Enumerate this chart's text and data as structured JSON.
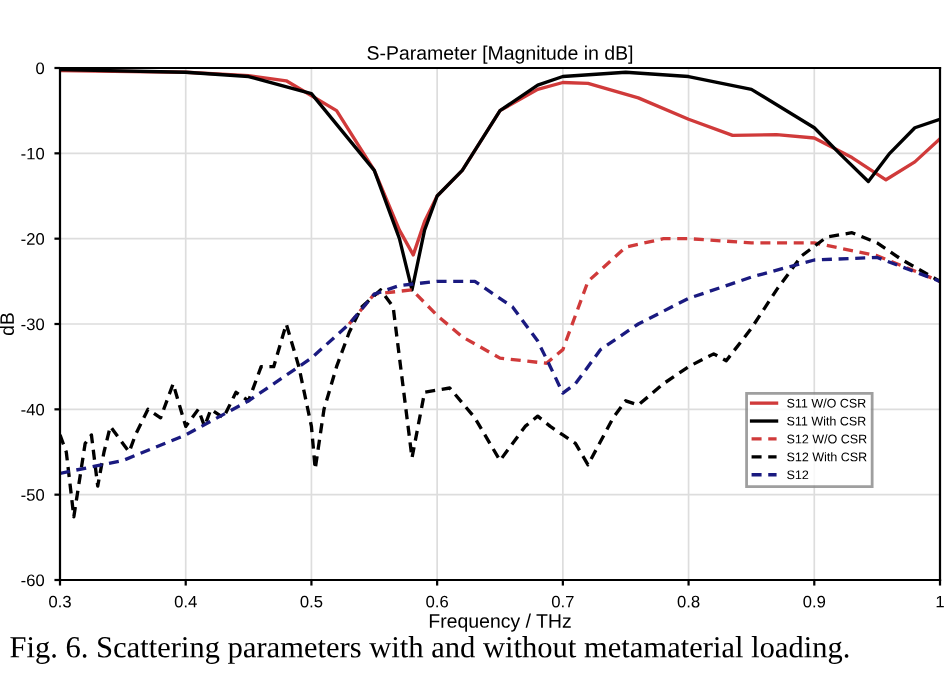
{
  "chart_data": {
    "type": "line",
    "title": "S-Parameter [Magnitude in dB]",
    "xlabel": "Frequency / THz",
    "ylabel": "dB",
    "xlim": [
      0.3,
      1.0
    ],
    "xticks": [
      0.3,
      0.4,
      0.5,
      0.6,
      0.7,
      0.8,
      0.9,
      1
    ],
    "ylim": [
      -60,
      0
    ],
    "yticks": [
      -60,
      -50,
      -40,
      -30,
      -20,
      -10,
      0
    ],
    "grid": true,
    "legend": "bottom right",
    "annotations": [
      "Fig. 6. Scattering parameters with and without metamaterial loading."
    ],
    "series": [
      {
        "name": "S11 W/O CSR",
        "color": "#d03a3a",
        "line_style": "solid",
        "x": [
          0.3,
          0.4,
          0.45,
          0.48,
          0.52,
          0.55,
          0.57,
          0.581,
          0.59,
          0.6,
          0.62,
          0.65,
          0.68,
          0.7,
          0.72,
          0.76,
          0.8,
          0.835,
          0.87,
          0.9,
          0.93,
          0.957,
          0.98,
          1.0
        ],
        "values": [
          -0.3,
          -0.5,
          -0.9,
          -1.5,
          -5,
          -12,
          -19,
          -21.9,
          -18,
          -15,
          -12,
          -5,
          -2.5,
          -1.7,
          -1.8,
          -3.5,
          -6,
          -7.9,
          -7.8,
          -8.2,
          -10.5,
          -13.1,
          -11,
          -8.3
        ]
      },
      {
        "name": "S11 With CSR",
        "color": "#000000",
        "line_style": "solid",
        "x": [
          0.3,
          0.4,
          0.45,
          0.47,
          0.5,
          0.55,
          0.57,
          0.58,
          0.59,
          0.6,
          0.62,
          0.65,
          0.68,
          0.7,
          0.75,
          0.8,
          0.85,
          0.9,
          0.92,
          0.943,
          0.96,
          0.98,
          1.0
        ],
        "values": [
          -0.2,
          -0.5,
          -1,
          -1.8,
          -3,
          -12,
          -20,
          -26,
          -19,
          -15,
          -12,
          -5,
          -2,
          -1,
          -0.5,
          -1,
          -2.5,
          -7,
          -10,
          -13.3,
          -10,
          -7,
          -6
        ]
      },
      {
        "name": "S12 W/O CSR",
        "color": "#d03a3a",
        "line_style": "dashed",
        "x": [
          0.53,
          0.55,
          0.58,
          0.6,
          0.62,
          0.65,
          0.687,
          0.7,
          0.72,
          0.75,
          0.78,
          0.8,
          0.85,
          0.9,
          0.95,
          1.0
        ],
        "values": [
          -30,
          -26.5,
          -26,
          -29,
          -31.5,
          -34,
          -34.6,
          -33,
          -25,
          -21,
          -20,
          -20,
          -20.5,
          -20.5,
          -22,
          -25
        ]
      },
      {
        "name": "S12 With CSR",
        "color": "#000000",
        "line_style": "dashed",
        "x": [
          0.3,
          0.305,
          0.311,
          0.32,
          0.325,
          0.33,
          0.335,
          0.34,
          0.35,
          0.355,
          0.36,
          0.37,
          0.38,
          0.39,
          0.4,
          0.41,
          0.415,
          0.42,
          0.43,
          0.44,
          0.45,
          0.46,
          0.47,
          0.48,
          0.49,
          0.5,
          0.503,
          0.51,
          0.52,
          0.53,
          0.54,
          0.555,
          0.565,
          0.58,
          0.59,
          0.61,
          0.63,
          0.65,
          0.67,
          0.68,
          0.69,
          0.7,
          0.71,
          0.72,
          0.74,
          0.75,
          0.76,
          0.78,
          0.8,
          0.82,
          0.83,
          0.85,
          0.87,
          0.89,
          0.91,
          0.93,
          0.95,
          0.97,
          1.0
        ],
        "values": [
          -43,
          -45,
          -52.6,
          -44,
          -43,
          -49,
          -45,
          -42,
          -44,
          -45,
          -43,
          -40,
          -41,
          -37,
          -42,
          -40,
          -42,
          -40,
          -41,
          -38,
          -39,
          -35,
          -35,
          -30,
          -35,
          -42,
          -47,
          -40,
          -35,
          -31,
          -28,
          -26,
          -28,
          -45.7,
          -38,
          -37.5,
          -41,
          -46,
          -42,
          -40.8,
          -42,
          -43,
          -44,
          -46.5,
          -41,
          -39,
          -39.5,
          -37,
          -35,
          -33.5,
          -34.3,
          -30.5,
          -26,
          -22,
          -19.8,
          -19.3,
          -20.5,
          -22.5,
          -25
        ]
      },
      {
        "name": "S12",
        "color": "#1a1a80",
        "line_style": "dashed",
        "x": [
          0.3,
          0.35,
          0.4,
          0.45,
          0.5,
          0.53,
          0.55,
          0.57,
          0.6,
          0.63,
          0.66,
          0.68,
          0.69,
          0.7,
          0.71,
          0.73,
          0.76,
          0.8,
          0.85,
          0.9,
          0.95,
          1.0
        ],
        "values": [
          -47.5,
          -46,
          -43,
          -39,
          -34,
          -30,
          -26.5,
          -25.5,
          -25,
          -25,
          -28,
          -32,
          -35,
          -38.1,
          -37,
          -33,
          -30,
          -27,
          -24.5,
          -22.5,
          -22.2,
          -25
        ]
      }
    ]
  }
}
